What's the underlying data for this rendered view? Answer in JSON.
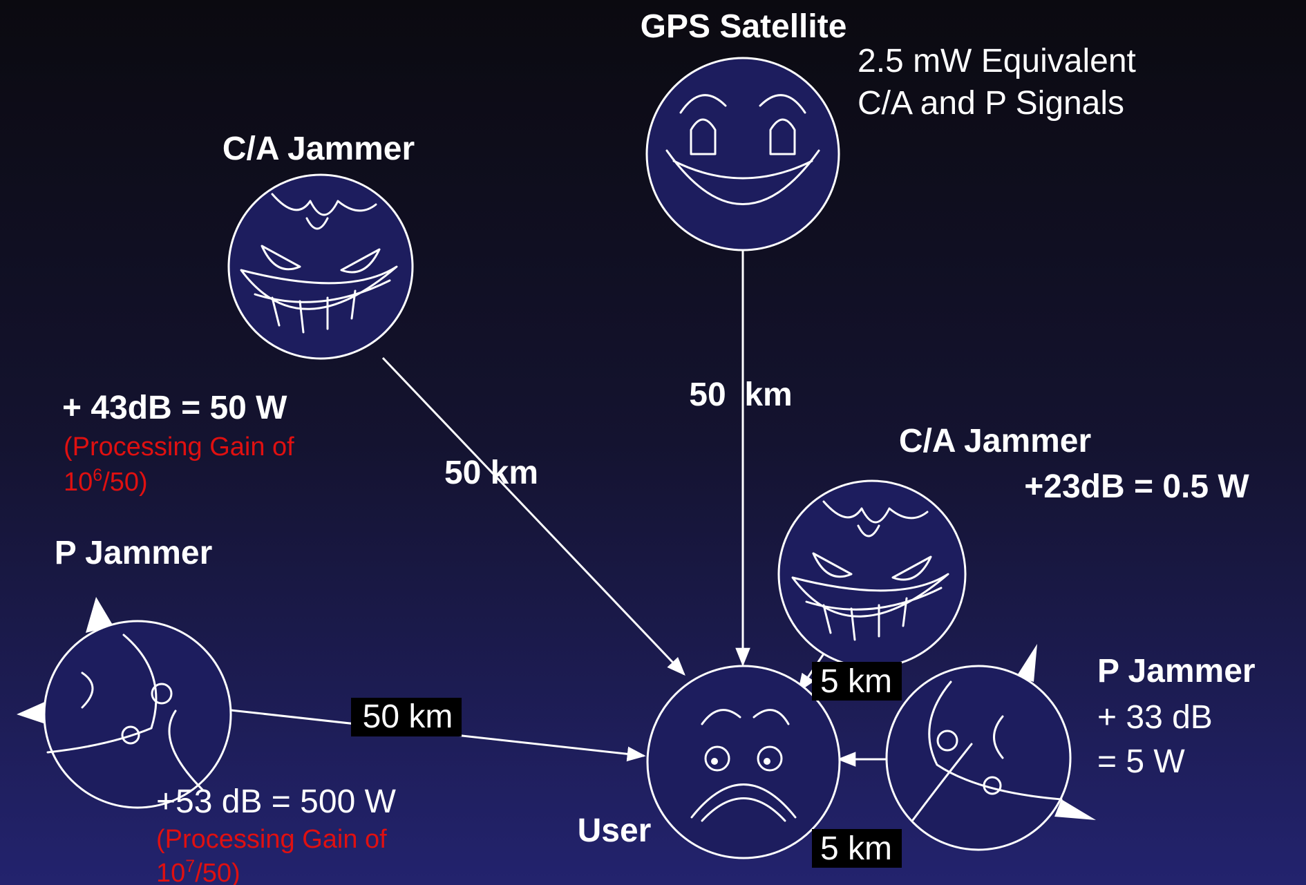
{
  "satellite": {
    "label": "GPS Satellite",
    "power_line1": "2.5 mW Equivalent",
    "power_line2": "C/A and P Signals",
    "distance": "50  km"
  },
  "ca_jammer_far": {
    "label": "C/A Jammer",
    "power": "+ 43dB = 50 W",
    "note_line1": "(Processing Gain of",
    "note_base": "10",
    "note_exp": "6",
    "note_rest": "/50)",
    "distance": "50 km"
  },
  "p_jammer_far": {
    "label": "P Jammer",
    "power": "+53 dB = 500 W",
    "note_line1": "(Processing Gain of",
    "note_base": "10",
    "note_exp": "7",
    "note_rest": "/50)",
    "distance": "50 km"
  },
  "ca_jammer_near": {
    "label": "C/A Jammer",
    "power": "+23dB = 0.5 W",
    "distance": "5 km"
  },
  "p_jammer_near": {
    "label": "P Jammer",
    "power_line1": "+ 33 dB",
    "power_line2": "= 5 W",
    "distance": "5 km"
  },
  "user": {
    "label": "User"
  }
}
